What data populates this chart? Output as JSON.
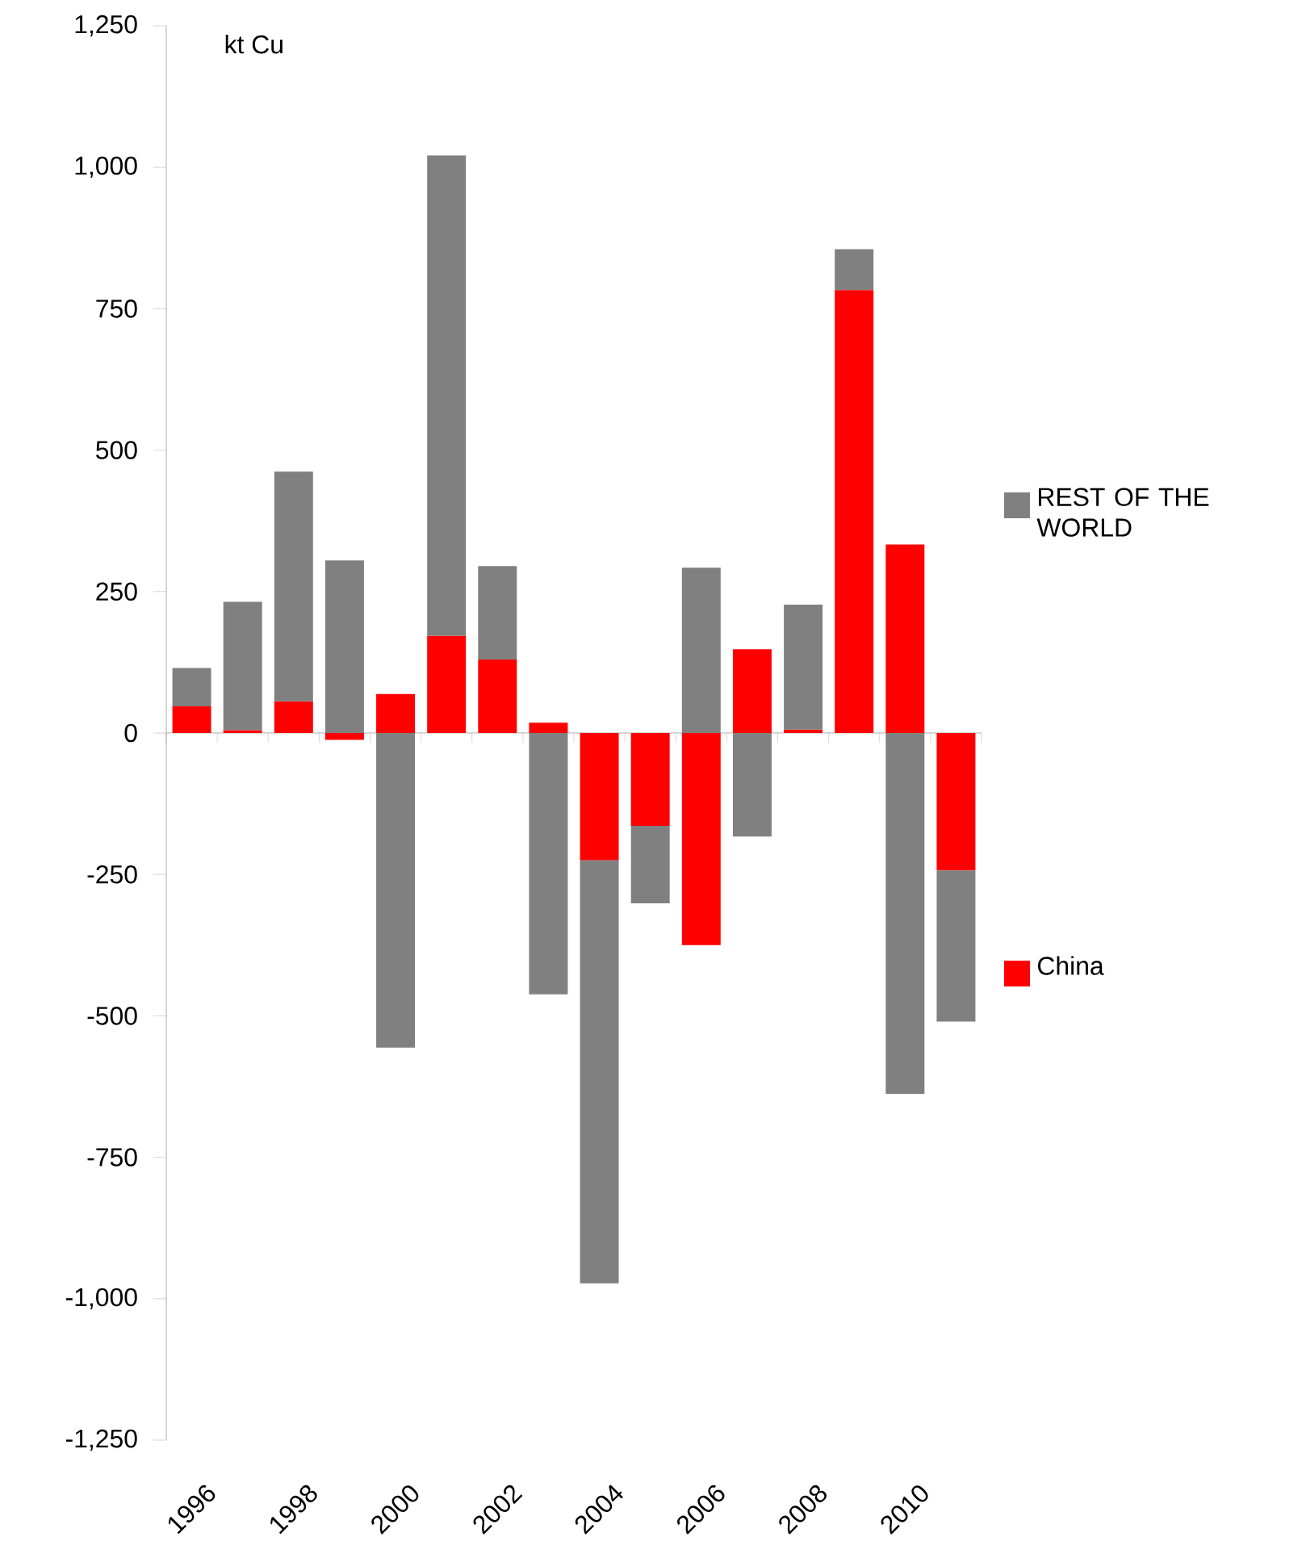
{
  "chart_data": {
    "type": "bar",
    "stacked": true,
    "ylabel": "kt Cu",
    "categories": [
      "1996",
      null,
      "1998",
      null,
      "2000",
      null,
      "2002",
      null,
      "2004",
      null,
      "2006",
      null,
      "2008",
      null,
      "2010",
      null
    ],
    "series": [
      {
        "name": "China",
        "color": "#ff0000",
        "values": [
          47,
          5,
          56,
          -12,
          69,
          172,
          130,
          18,
          -225,
          -164,
          -375,
          148,
          6,
          783,
          333,
          -243
        ]
      },
      {
        "name": "REST OF THE WORLD",
        "color": "#808080",
        "values": [
          68,
          227,
          406,
          305,
          -556,
          849,
          165,
          -462,
          -748,
          -137,
          292,
          -183,
          221,
          72,
          -638,
          -267
        ]
      }
    ],
    "ylim": [
      -1250,
      1250
    ],
    "yticks": [
      {
        "value": -1250,
        "label": "-1,250"
      },
      {
        "value": -1000,
        "label": "-1,000"
      },
      -750,
      -500,
      -250,
      0,
      250,
      500,
      750,
      {
        "value": 1000,
        "label": "1,000"
      },
      {
        "value": 1250,
        "label": "1,250"
      }
    ],
    "legend": "right"
  }
}
